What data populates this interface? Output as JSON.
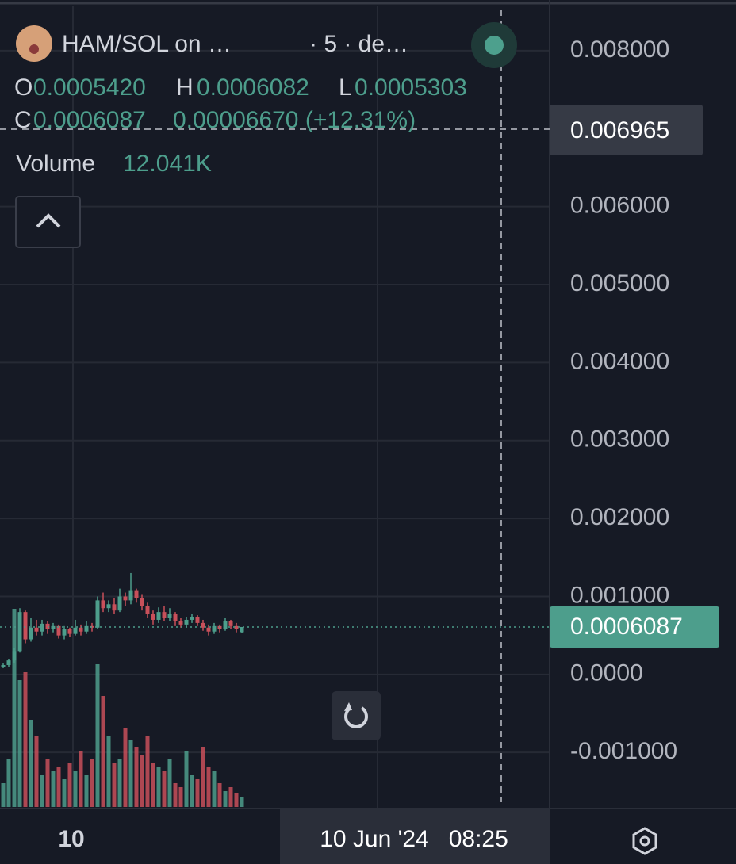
{
  "header": {
    "symbol": "HAM/SOL on …",
    "interval": "· 5 · de…",
    "o_label": "O",
    "o": "0.0005420",
    "h_label": "H",
    "h": "0.0006082",
    "l_label": "L",
    "l": "0.0005303",
    "c_label": "C",
    "c": "0.0006087",
    "change": "0.00006670 (+12.31%)",
    "volume_label": "Volume",
    "volume": "12.041K"
  },
  "chart_data": {
    "type": "candlestick",
    "categories": [
      null,
      null,
      null,
      null,
      null,
      null,
      null,
      null,
      null,
      null,
      null,
      null,
      "10",
      null,
      null,
      null,
      null,
      null,
      null,
      null,
      null,
      null,
      null,
      null,
      null,
      null,
      null,
      null,
      null,
      null,
      null,
      null,
      null,
      null,
      null,
      null,
      null,
      null,
      null,
      null,
      null,
      null,
      null,
      null
    ],
    "open": [
      0.0001,
      0.00012,
      0.00018,
      0.0003,
      0.0008,
      0.00045,
      0.0006,
      0.00055,
      0.00065,
      0.00058,
      0.00062,
      0.0005,
      0.00058,
      0.00052,
      0.0006,
      0.00055,
      0.00062,
      0.0006,
      0.00095,
      0.00085,
      0.0009,
      0.00082,
      0.001,
      0.00095,
      0.00108,
      0.00098,
      0.00088,
      0.00078,
      0.0007,
      0.0008,
      0.00072,
      0.00078,
      0.00068,
      0.00064,
      0.0007,
      0.00074,
      0.00066,
      0.0006,
      0.00055,
      0.00062,
      0.00058,
      0.00068,
      0.00062,
      0.000542
    ],
    "high": [
      0.00014,
      0.0002,
      0.00034,
      0.00085,
      0.00082,
      0.00072,
      0.0007,
      0.0007,
      0.00068,
      0.00066,
      0.00064,
      0.00062,
      0.0006,
      0.0007,
      0.00064,
      0.00068,
      0.00066,
      0.001,
      0.00105,
      0.00095,
      0.00098,
      0.0011,
      0.00105,
      0.0013,
      0.0011,
      0.00102,
      0.00092,
      0.00082,
      0.00086,
      0.00088,
      0.00085,
      0.0008,
      0.00072,
      0.00074,
      0.00078,
      0.00076,
      0.0007,
      0.00064,
      0.00066,
      0.00064,
      0.00072,
      0.0007,
      0.00066,
      0.0006082
    ],
    "low": [
      8e-05,
      0.0001,
      0.00015,
      0.00028,
      0.0004,
      0.00042,
      0.0005,
      0.0005,
      0.00052,
      0.00054,
      0.00046,
      0.00045,
      0.00048,
      0.0005,
      0.0005,
      0.00052,
      0.00055,
      0.00058,
      0.0008,
      0.0008,
      0.00078,
      0.0008,
      0.00088,
      0.0009,
      0.00092,
      0.00082,
      0.00072,
      0.00064,
      0.00066,
      0.00068,
      0.00068,
      0.00062,
      0.0006,
      0.0006,
      0.00066,
      0.00062,
      0.00056,
      0.0005,
      0.00052,
      0.00054,
      0.00056,
      0.00058,
      0.00054,
      0.0005303
    ],
    "close": [
      0.00012,
      0.00018,
      0.0003,
      0.0008,
      0.00045,
      0.0006,
      0.00055,
      0.00065,
      0.00058,
      0.00062,
      0.0005,
      0.00058,
      0.00052,
      0.0006,
      0.00055,
      0.00062,
      0.0006,
      0.00095,
      0.00085,
      0.0009,
      0.00082,
      0.001,
      0.00095,
      0.00108,
      0.00098,
      0.00088,
      0.00078,
      0.0007,
      0.0008,
      0.00072,
      0.00078,
      0.00068,
      0.00064,
      0.0007,
      0.00074,
      0.00066,
      0.0006,
      0.00055,
      0.00062,
      0.00058,
      0.00068,
      0.00062,
      0.00058,
      0.0006087
    ],
    "volume": [
      30,
      60,
      250,
      160,
      170,
      110,
      90,
      40,
      60,
      45,
      50,
      35,
      55,
      45,
      70,
      40,
      60,
      180,
      140,
      90,
      55,
      60,
      100,
      85,
      75,
      65,
      90,
      55,
      50,
      45,
      60,
      30,
      25,
      70,
      40,
      35,
      75,
      50,
      45,
      30,
      20,
      25,
      18,
      12.041
    ],
    "up_color": "#4d9e8c",
    "down_color": "#c8505a",
    "ylim": [
      -0.00172,
      0.00865
    ],
    "yticks": [
      {
        "value": 0.008,
        "label": "0.008000"
      },
      {
        "value": 0.006,
        "label": "0.006000"
      },
      {
        "value": 0.005,
        "label": "0.005000"
      },
      {
        "value": 0.004,
        "label": "0.004000"
      },
      {
        "value": 0.003,
        "label": "0.003000"
      },
      {
        "value": 0.002,
        "label": "0.002000"
      },
      {
        "value": 0.001,
        "label": "0.001000"
      },
      {
        "value": 0,
        "label": "0.0000"
      },
      {
        "value": -0.001,
        "label": "-0.001000"
      }
    ],
    "grid": true,
    "crosshair": {
      "price": {
        "value": 0.006965,
        "label": "0.006965"
      },
      "time": "10 Jun '24   08:25"
    },
    "last_price": {
      "value": 0.0006087,
      "label": "0.0006087"
    }
  }
}
